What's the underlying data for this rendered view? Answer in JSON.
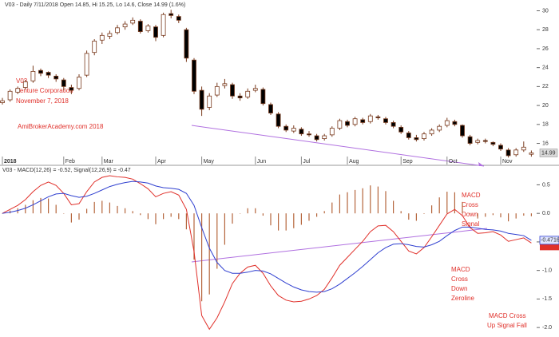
{
  "chart_data": [
    {
      "type": "candlestick",
      "header": "V03 - Daily 7/11/2018 Open 14.85, Hi 15.25, Lo 14.6, Close 14.99 (1.6%)",
      "annotations": [
        "V03",
        "Venture Corporation",
        "November 7, 2018",
        "AmiBrokerAcademy.com 2018"
      ],
      "categories": [
        "2018",
        null,
        null,
        null,
        null,
        null,
        null,
        null,
        "Feb",
        null,
        null,
        null,
        null,
        "Mar",
        null,
        null,
        null,
        null,
        null,
        null,
        "Apr",
        null,
        null,
        null,
        null,
        null,
        "May",
        null,
        null,
        null,
        null,
        null,
        null,
        "Jun",
        null,
        null,
        null,
        null,
        null,
        "Jul",
        null,
        null,
        null,
        null,
        null,
        "Aug",
        null,
        null,
        null,
        null,
        null,
        null,
        "Sep",
        null,
        null,
        null,
        null,
        null,
        "Oct",
        null,
        null,
        null,
        null,
        null,
        null,
        "Nov",
        null,
        null,
        null,
        null
      ],
      "candles": [
        [
          20.3,
          20.8,
          20.1,
          20.5
        ],
        [
          20.6,
          21.7,
          20.4,
          21.5
        ],
        [
          21.4,
          22.0,
          21.2,
          21.8
        ],
        [
          21.9,
          22.7,
          21.7,
          22.5
        ],
        [
          22.6,
          24.2,
          22.4,
          23.6
        ],
        [
          23.7,
          23.9,
          23.1,
          23.4
        ],
        [
          23.5,
          23.6,
          22.9,
          23.2
        ],
        [
          23.1,
          23.3,
          22.5,
          22.8
        ],
        [
          22.7,
          22.9,
          21.6,
          22.0
        ],
        [
          21.9,
          22.2,
          21.2,
          21.6
        ],
        [
          21.8,
          23.3,
          21.6,
          23.0
        ],
        [
          23.2,
          25.8,
          23.0,
          25.5
        ],
        [
          25.6,
          27.0,
          25.3,
          26.8
        ],
        [
          26.9,
          27.7,
          26.5,
          27.4
        ],
        [
          27.3,
          27.9,
          27.0,
          27.6
        ],
        [
          27.7,
          28.5,
          27.5,
          28.2
        ],
        [
          28.3,
          28.9,
          28.0,
          28.6
        ],
        [
          28.7,
          29.3,
          28.5,
          29.0
        ],
        [
          28.9,
          29.1,
          27.6,
          27.8
        ],
        [
          27.9,
          28.6,
          27.7,
          28.4
        ],
        [
          28.3,
          28.5,
          26.8,
          27.2
        ],
        [
          27.4,
          29.8,
          27.2,
          29.6
        ],
        [
          29.7,
          30.1,
          29.2,
          29.5
        ],
        [
          29.4,
          29.6,
          28.7,
          29.0
        ],
        [
          28.0,
          28.2,
          24.6,
          25.0
        ],
        [
          24.8,
          25.0,
          21.2,
          21.5
        ],
        [
          21.6,
          22.0,
          18.9,
          19.6
        ],
        [
          19.8,
          21.3,
          19.5,
          21.0
        ],
        [
          21.1,
          22.4,
          20.9,
          22.0
        ],
        [
          22.1,
          22.8,
          21.8,
          22.3
        ],
        [
          22.2,
          22.4,
          20.7,
          21.0
        ],
        [
          21.0,
          21.3,
          20.5,
          20.8
        ],
        [
          20.9,
          21.8,
          20.7,
          21.5
        ],
        [
          21.6,
          22.2,
          21.4,
          21.8
        ],
        [
          21.7,
          21.9,
          20.0,
          20.2
        ],
        [
          20.1,
          20.3,
          19.0,
          19.2
        ],
        [
          19.1,
          19.3,
          17.6,
          17.8
        ],
        [
          17.8,
          18.0,
          17.2,
          17.4
        ],
        [
          17.3,
          17.9,
          17.1,
          17.6
        ],
        [
          17.5,
          17.7,
          16.8,
          17.0
        ],
        [
          17.0,
          17.3,
          16.7,
          16.9
        ],
        [
          16.8,
          17.0,
          16.2,
          16.4
        ],
        [
          16.5,
          17.0,
          16.3,
          16.8
        ],
        [
          16.9,
          17.8,
          16.7,
          17.6
        ],
        [
          17.6,
          18.6,
          17.4,
          18.4
        ],
        [
          18.3,
          18.5,
          17.7,
          17.9
        ],
        [
          18.0,
          18.8,
          17.8,
          18.6
        ],
        [
          18.5,
          18.7,
          18.0,
          18.2
        ],
        [
          18.3,
          19.1,
          18.1,
          18.9
        ],
        [
          18.8,
          19.0,
          18.5,
          18.7
        ],
        [
          18.6,
          18.8,
          18.0,
          18.2
        ],
        [
          18.2,
          18.4,
          17.6,
          17.8
        ],
        [
          17.7,
          17.9,
          17.0,
          17.2
        ],
        [
          17.1,
          17.3,
          16.4,
          16.6
        ],
        [
          16.6,
          16.9,
          16.2,
          16.4
        ],
        [
          16.5,
          17.2,
          16.3,
          17.0
        ],
        [
          17.0,
          17.6,
          16.8,
          17.4
        ],
        [
          17.4,
          18.0,
          17.2,
          17.8
        ],
        [
          17.9,
          18.7,
          17.7,
          18.4
        ],
        [
          18.3,
          18.5,
          17.8,
          18.0
        ],
        [
          17.9,
          18.0,
          16.6,
          16.8
        ],
        [
          16.7,
          16.9,
          15.8,
          16.0
        ],
        [
          16.1,
          16.5,
          15.9,
          16.3
        ],
        [
          16.3,
          16.5,
          16.0,
          16.2
        ],
        [
          16.1,
          16.2,
          15.7,
          15.9
        ],
        [
          15.8,
          16.0,
          15.2,
          15.4
        ],
        [
          15.3,
          15.5,
          14.5,
          14.7
        ],
        [
          14.8,
          15.5,
          14.6,
          15.3
        ],
        [
          15.3,
          16.2,
          15.1,
          15.6
        ],
        [
          14.85,
          15.25,
          14.6,
          14.99
        ]
      ],
      "up_color": "#ffffff",
      "down_color": "#000000",
      "outline_color": "#7a3b1e",
      "ylim": [
        13.6,
        30.8
      ],
      "yticks": [
        16,
        18,
        20,
        22,
        24,
        26,
        28,
        30
      ]
    },
    {
      "type": "line",
      "header": "V03 - MACD(12,26) = -0.52, Signal(12,26,9) = -0.47",
      "annotations": [
        [
          "MACD",
          "Cross",
          "Down",
          "Signal"
        ],
        [
          "MACD",
          "Cross",
          "Down",
          "Zeroline"
        ],
        [
          "MACD Cross",
          "Up Signal Fall"
        ]
      ],
      "series": [
        {
          "name": "MACD",
          "color": "#e0302a",
          "values": [
            0.0,
            0.07,
            0.14,
            0.24,
            0.38,
            0.49,
            0.55,
            0.49,
            0.35,
            0.15,
            0.17,
            0.38,
            0.55,
            0.63,
            0.66,
            0.64,
            0.63,
            0.6,
            0.52,
            0.43,
            0.29,
            0.35,
            0.38,
            0.32,
            0.07,
            -0.67,
            -1.79,
            -2.03,
            -1.83,
            -1.55,
            -1.23,
            -1.05,
            -0.94,
            -0.91,
            -1.05,
            -1.27,
            -1.44,
            -1.52,
            -1.55,
            -1.54,
            -1.5,
            -1.44,
            -1.33,
            -1.13,
            -0.91,
            -0.77,
            -0.63,
            -0.49,
            -0.32,
            -0.22,
            -0.21,
            -0.32,
            -0.49,
            -0.66,
            -0.71,
            -0.6,
            -0.41,
            -0.21,
            -0.01,
            0.07,
            -0.04,
            -0.25,
            -0.35,
            -0.34,
            -0.32,
            -0.38,
            -0.49,
            -0.46,
            -0.43,
            -0.52
          ]
        },
        {
          "name": "Signal",
          "color": "#3040d0",
          "values": [
            0.0,
            0.02,
            0.05,
            0.09,
            0.15,
            0.22,
            0.29,
            0.34,
            0.35,
            0.31,
            0.28,
            0.3,
            0.35,
            0.41,
            0.47,
            0.51,
            0.54,
            0.56,
            0.55,
            0.53,
            0.48,
            0.45,
            0.44,
            0.42,
            0.35,
            0.14,
            -0.25,
            -0.61,
            -0.86,
            -1.0,
            -1.05,
            -1.05,
            -1.03,
            -1.0,
            -1.01,
            -1.06,
            -1.14,
            -1.22,
            -1.29,
            -1.34,
            -1.37,
            -1.38,
            -1.37,
            -1.32,
            -1.24,
            -1.14,
            -1.04,
            -0.93,
            -0.81,
            -0.69,
            -0.6,
            -0.54,
            -0.53,
            -0.55,
            -0.58,
            -0.59,
            -0.55,
            -0.49,
            -0.39,
            -0.3,
            -0.24,
            -0.24,
            -0.26,
            -0.28,
            -0.29,
            -0.31,
            -0.35,
            -0.37,
            -0.39,
            -0.47168
          ]
        }
      ],
      "histogram": {
        "color": "#b5653c",
        "values": [
          0,
          0.05,
          0.09,
          0.15,
          0.23,
          0.27,
          0.26,
          0.15,
          0.0,
          -0.16,
          -0.11,
          0.08,
          0.2,
          0.22,
          0.19,
          0.13,
          0.09,
          0.04,
          -0.03,
          -0.1,
          -0.19,
          -0.1,
          -0.06,
          -0.1,
          -0.28,
          -0.81,
          -1.54,
          -1.42,
          -0.97,
          -0.55,
          -0.18,
          0.0,
          0.09,
          0.09,
          -0.04,
          -0.21,
          -0.3,
          -0.3,
          -0.26,
          -0.2,
          -0.13,
          -0.06,
          0.04,
          0.19,
          0.33,
          0.37,
          0.41,
          0.44,
          0.49,
          0.47,
          0.39,
          0.22,
          0.04,
          -0.11,
          -0.13,
          -0.01,
          0.14,
          0.28,
          0.38,
          0.37,
          0.2,
          -0.01,
          -0.09,
          -0.06,
          -0.03,
          -0.07,
          -0.14,
          -0.09,
          -0.04,
          -0.05
        ]
      },
      "ylim": [
        -2.11,
        0.8
      ],
      "yticks": [
        0.5,
        {
          "value": 0,
          "label": "0.0"
        },
        -0.5,
        {
          "value": -1,
          "label": "-1.0"
        },
        -1.5,
        {
          "value": -2,
          "label": "-2.0"
        }
      ]
    }
  ]
}
